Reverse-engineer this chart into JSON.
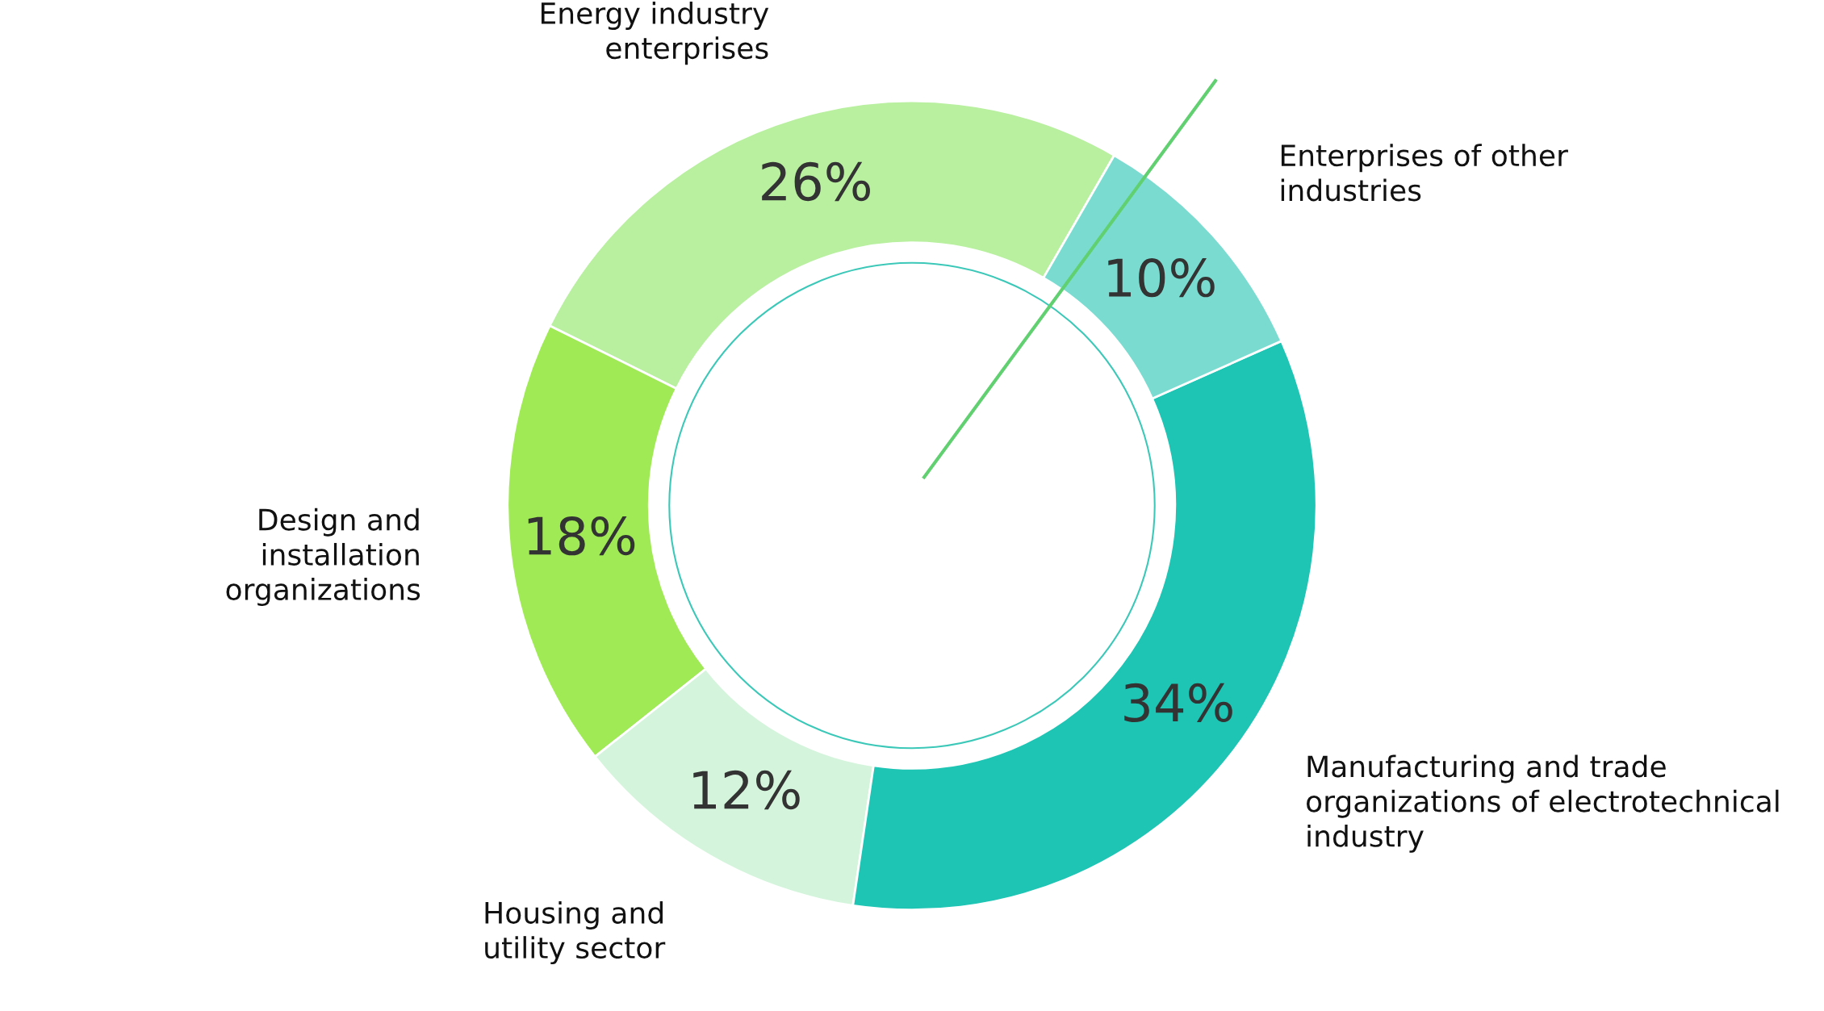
{
  "chart_data": {
    "type": "donut",
    "categories": [
      "Energy industry\nenterprises",
      "Design and\ninstallation\norganizations",
      "Housing and\nutility sector",
      "Manufacturing and trade\norganizations of electrotechnical\nindustry",
      "Enterprises of other\nindustries"
    ],
    "values": [
      26,
      18,
      12,
      34,
      10
    ],
    "value_labels": [
      "26%",
      "18%",
      "12%",
      "34%",
      "10%"
    ],
    "colors": [
      "#b8f0a0",
      "#a0ea55",
      "#d4f5dc",
      "#1ec4b4",
      "#7adcd0"
    ],
    "legend": false
  }
}
